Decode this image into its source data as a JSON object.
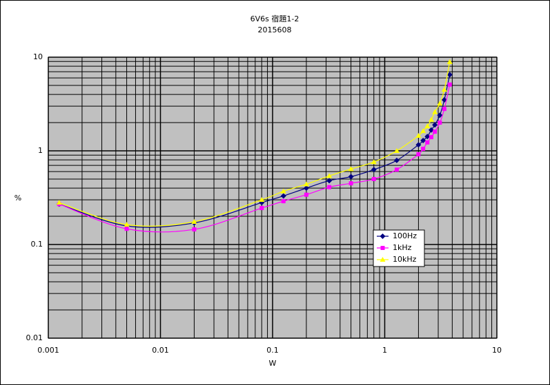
{
  "chart_data": {
    "type": "line",
    "title": "6V6s 宿題1-2",
    "subtitle": "2015608",
    "x_label": "W",
    "y_label": "%",
    "x": [
      0.00125,
      0.005,
      0.02,
      0.08,
      0.125,
      0.2,
      0.32,
      0.5,
      0.8,
      1.28,
      2.0,
      2.2,
      2.4,
      2.6,
      2.8,
      3.1,
      3.4,
      3.8
    ],
    "series": [
      {
        "name": "100Hz",
        "color": "#000080",
        "marker": "diamond",
        "values": [
          0.27,
          0.158,
          0.17,
          0.28,
          0.33,
          0.4,
          0.48,
          0.53,
          0.63,
          0.79,
          1.16,
          1.29,
          1.42,
          1.67,
          1.89,
          2.4,
          3.5,
          6.5
        ]
      },
      {
        "name": "1kHz",
        "color": "#ff00ff",
        "marker": "square",
        "values": [
          0.27,
          0.147,
          0.145,
          0.245,
          0.29,
          0.34,
          0.41,
          0.45,
          0.5,
          0.63,
          0.92,
          1.05,
          1.23,
          1.4,
          1.6,
          2.0,
          2.8,
          5.1
        ]
      },
      {
        "name": "10kHz",
        "color": "#ffff00",
        "marker": "triangle",
        "values": [
          0.28,
          0.163,
          0.175,
          0.3,
          0.37,
          0.44,
          0.54,
          0.64,
          0.76,
          1.0,
          1.45,
          1.63,
          1.83,
          2.15,
          2.6,
          3.2,
          4.5,
          8.9
        ]
      }
    ],
    "xlim": [
      0.001,
      10
    ],
    "ylim": [
      0.01,
      10
    ],
    "xticks": [
      0.001,
      0.01,
      0.1,
      1,
      10
    ],
    "yticks": [
      0.01,
      0.1,
      1,
      10
    ],
    "x_log": true,
    "y_log": true,
    "grid": true,
    "minor_grid": true,
    "plot_background": "#c0c0c0",
    "legend": "right"
  }
}
